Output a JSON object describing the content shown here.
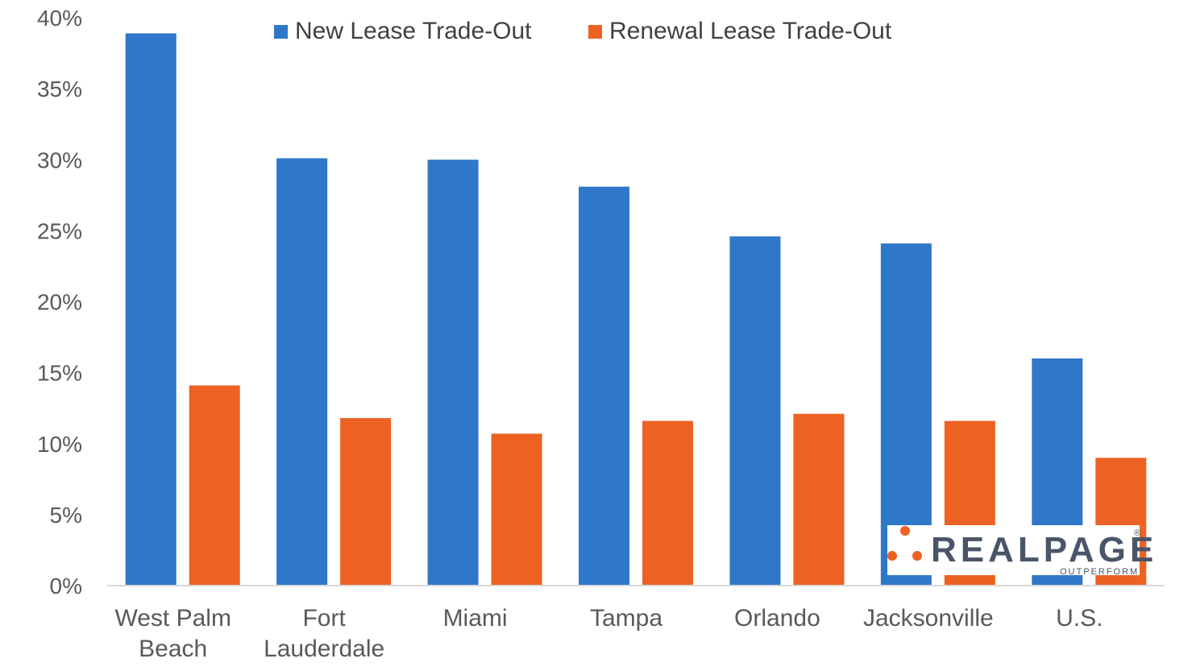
{
  "chart_data": {
    "type": "bar",
    "categories": [
      [
        "West Palm",
        "Beach"
      ],
      [
        "Fort",
        "Lauderdale"
      ],
      [
        "Miami"
      ],
      [
        "Tampa"
      ],
      [
        "Orlando"
      ],
      [
        "Jacksonville"
      ],
      [
        "U.S."
      ]
    ],
    "series": [
      {
        "name": "New Lease Trade-Out",
        "color": "#2f77c9",
        "values": [
          38.9,
          30.1,
          30.0,
          28.1,
          24.6,
          24.1,
          16.0
        ]
      },
      {
        "name": "Renewal Lease Trade-Out",
        "color": "#ed6222",
        "values": [
          14.1,
          11.8,
          10.7,
          11.6,
          12.1,
          11.6,
          9.0
        ]
      }
    ],
    "yticks": [
      "0%",
      "5%",
      "10%",
      "15%",
      "20%",
      "25%",
      "30%",
      "35%",
      "40%"
    ],
    "ylim": [
      0,
      40
    ],
    "grid": false,
    "legend_position": "top"
  },
  "logo": {
    "text": "REALPAGE",
    "subtext": "OUTPERFORM",
    "registered": "®",
    "dot_color": "#ed6222"
  }
}
